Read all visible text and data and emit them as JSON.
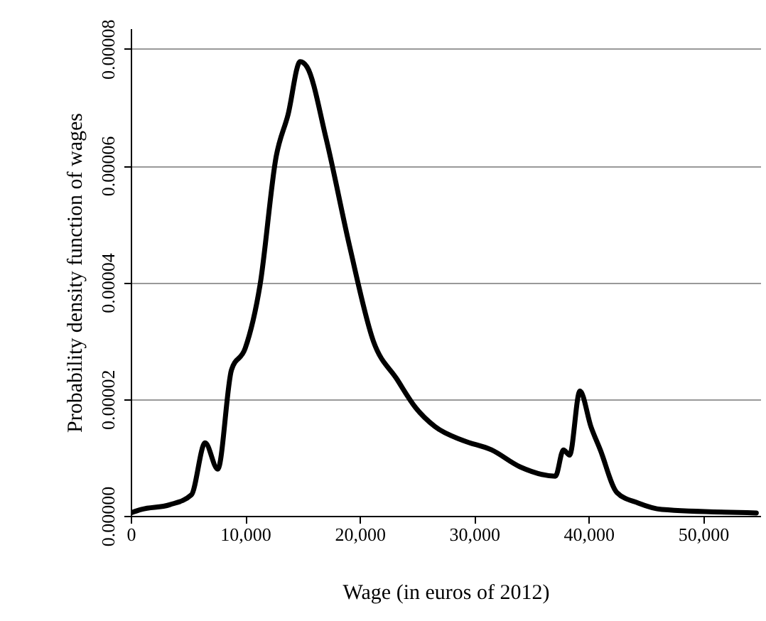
{
  "chart_data": {
    "type": "line",
    "xlabel": "Wage (in euros of 2012)",
    "ylabel": "Probability density function of wages",
    "x": [
      0,
      950,
      3400,
      5300,
      6500,
      7600,
      8800,
      10000,
      11300,
      12700,
      13750,
      14800,
      15400,
      17060,
      19130,
      21200,
      23260,
      24900,
      26570,
      29040,
      31520,
      34000,
      37100,
      37800,
      38340,
      39240,
      40200,
      41020,
      42470,
      44330,
      46400,
      54650
    ],
    "series": [
      {
        "color": "#000000",
        "values": [
          5e-07,
          1.1e-06,
          1.9e-06,
          3.6e-06,
          1.25e-05,
          8e-06,
          2.5e-05,
          2.87e-05,
          3.96e-05,
          6.15e-05,
          6.88e-05,
          7.78e-05,
          7.69e-05,
          6.47e-05,
          4.61e-05,
          2.99e-05,
          2.34e-05,
          1.85e-05,
          1.53e-05,
          1.29e-05,
          1.13e-05,
          8.4e-06,
          6.8e-06,
          1.13e-05,
          1.04e-05,
          2.14e-05,
          1.53e-05,
          1.13e-05,
          4e-06,
          2.2e-06,
          1.1e-06,
          5e-07
        ]
      }
    ],
    "xlim": [
      0,
      55000
    ],
    "xticks": [
      {
        "value": 0,
        "label": "0"
      },
      {
        "value": 10000,
        "label": "10,000"
      },
      {
        "value": 20000,
        "label": "20,000"
      },
      {
        "value": 30000,
        "label": "30,000"
      },
      {
        "value": 40000,
        "label": "40,000"
      },
      {
        "value": 50000,
        "label": "50,000"
      }
    ],
    "ylim": [
      0,
      8.35e-05
    ],
    "yticks": [
      {
        "value": 0,
        "label": "0.00000"
      },
      {
        "value": 2e-05,
        "label": "0.00002"
      },
      {
        "value": 4e-05,
        "label": "0.00004"
      },
      {
        "value": 6e-05,
        "label": "0.00006"
      },
      {
        "value": 8e-05,
        "label": "0.00008"
      }
    ],
    "grid": "y"
  }
}
